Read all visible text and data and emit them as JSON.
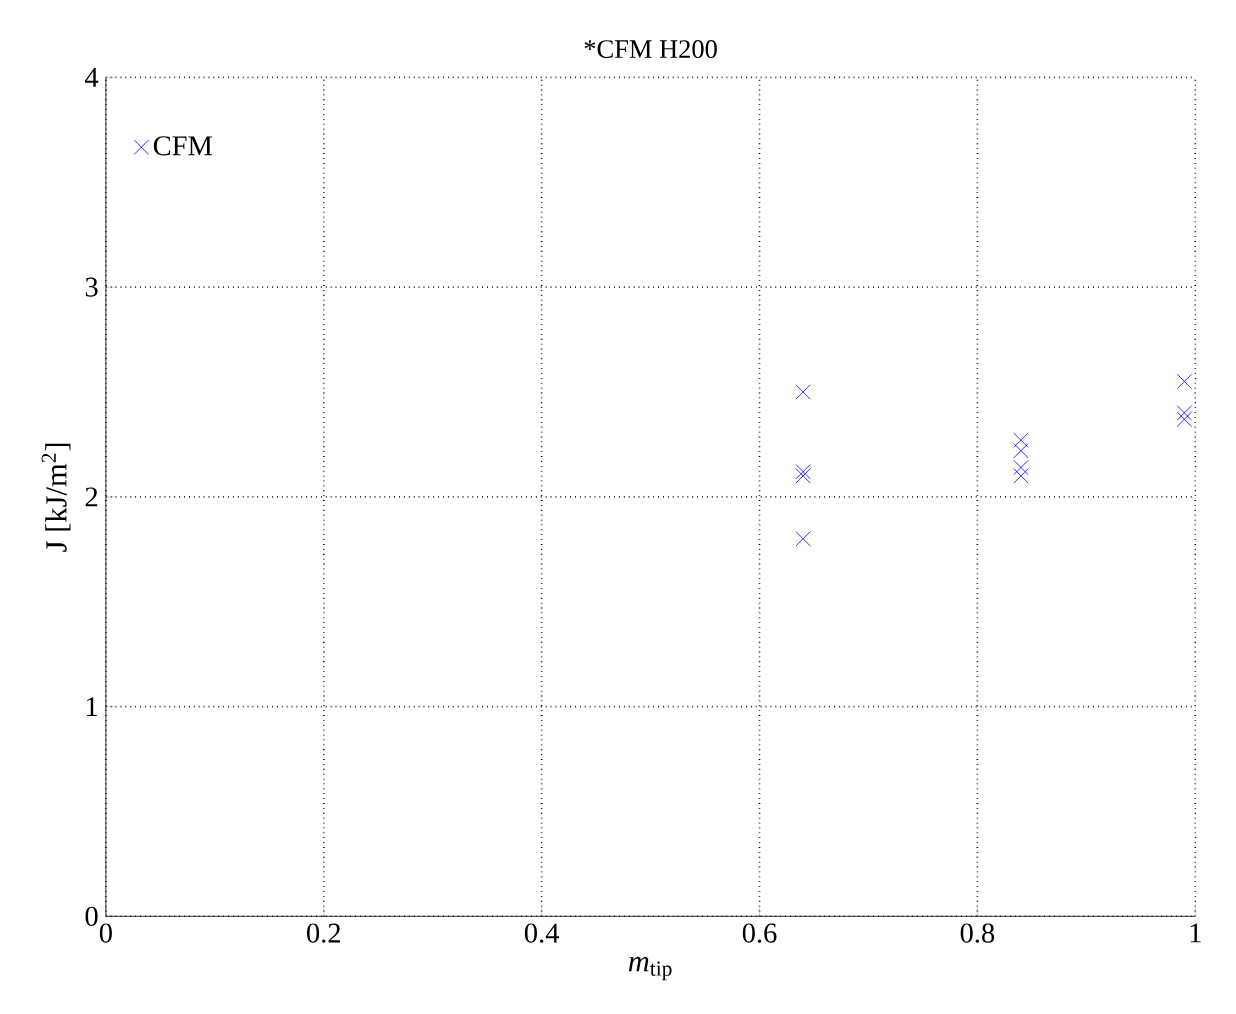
{
  "chart_data": {
    "type": "scatter",
    "title": "*CFM H200",
    "xlabel": "*m*$_{tip}$",
    "ylabel": "J [kJ/m$^{2}$]",
    "xlim": [
      0,
      1
    ],
    "ylim": [
      0,
      4
    ],
    "xticks": [
      0,
      0.2,
      0.4,
      0.6,
      0.8,
      1
    ],
    "yticks": [
      0,
      1,
      2,
      3,
      4
    ],
    "grid": true,
    "legend": "top left",
    "marker": "cross",
    "series": [
      {
        "name": "CFM",
        "color": "#0000ff",
        "x": [
          0.64,
          0.64,
          0.64,
          0.64,
          0.84,
          0.84,
          0.84,
          0.84,
          0.99,
          0.99,
          0.99
        ],
        "values": [
          2.5,
          2.12,
          2.1,
          1.8,
          2.27,
          2.22,
          2.14,
          2.1,
          2.55,
          2.4,
          2.37
        ]
      }
    ]
  }
}
